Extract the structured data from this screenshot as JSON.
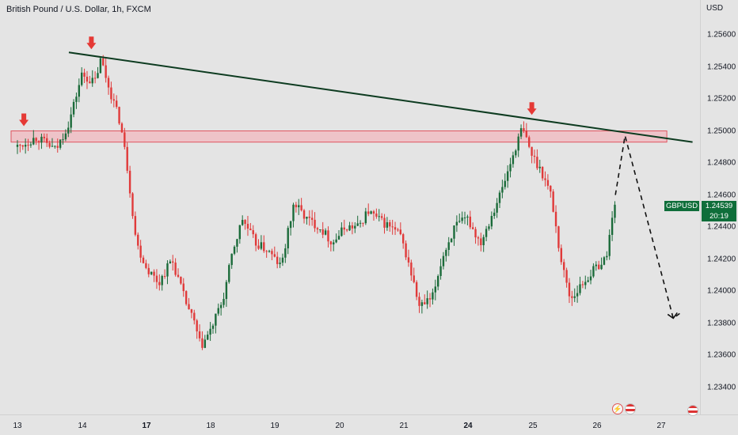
{
  "header": {
    "title": "British Pound / U.S. Dollar, 1h, FXCM"
  },
  "price_axis": {
    "currency": "USD"
  },
  "last_price_tag": {
    "symbol": "GBPUSD",
    "price": "1.24539",
    "countdown": "20:19"
  },
  "colors": {
    "up": "#1b6b3a",
    "down": "#e03a3a",
    "zone_fill": "#f2b8bf",
    "zone_border": "#e05560",
    "trendline": "#0d3b20",
    "arrow": "#e53935",
    "tag": "#0f6e3a"
  },
  "chart_data": {
    "type": "candlestick",
    "symbol": "GBPUSD",
    "timeframe": "1h",
    "ylim": [
      1.233,
      1.2574
    ],
    "y_ticks": [
      "1.25600",
      "1.25400",
      "1.25200",
      "1.25000",
      "1.24800",
      "1.24600",
      "1.24400",
      "1.24200",
      "1.24000",
      "1.23800",
      "1.23600",
      "1.23400"
    ],
    "x_ticks": [
      {
        "label": "13",
        "bold": false
      },
      {
        "label": "14",
        "bold": false
      },
      {
        "label": "17",
        "bold": true
      },
      {
        "label": "18",
        "bold": false
      },
      {
        "label": "19",
        "bold": false
      },
      {
        "label": "20",
        "bold": false
      },
      {
        "label": "21",
        "bold": false
      },
      {
        "label": "24",
        "bold": true
      },
      {
        "label": "25",
        "bold": false
      },
      {
        "label": "26",
        "bold": false
      },
      {
        "label": "27",
        "bold": false
      }
    ],
    "key_levels": [
      {
        "day": 0.0,
        "price": 1.249
      },
      {
        "day": 0.3,
        "price": 1.2496
      },
      {
        "day": 0.6,
        "price": 1.2488
      },
      {
        "day": 0.8,
        "price": 1.2505
      },
      {
        "day": 1.0,
        "price": 1.2535
      },
      {
        "day": 1.2,
        "price": 1.253
      },
      {
        "day": 1.3,
        "price": 1.2545
      },
      {
        "day": 1.4,
        "price": 1.253
      },
      {
        "day": 1.6,
        "price": 1.2505
      },
      {
        "day": 1.7,
        "price": 1.248
      },
      {
        "day": 1.85,
        "price": 1.243
      },
      {
        "day": 2.0,
        "price": 1.2415
      },
      {
        "day": 2.2,
        "price": 1.2405
      },
      {
        "day": 2.4,
        "price": 1.242
      },
      {
        "day": 2.6,
        "price": 1.2395
      },
      {
        "day": 2.75,
        "price": 1.238
      },
      {
        "day": 2.85,
        "price": 1.2365
      },
      {
        "day": 3.0,
        "price": 1.2375
      },
      {
        "day": 3.2,
        "price": 1.2395
      },
      {
        "day": 3.35,
        "price": 1.2425
      },
      {
        "day": 3.5,
        "price": 1.2445
      },
      {
        "day": 3.7,
        "price": 1.243
      },
      {
        "day": 3.9,
        "price": 1.2425
      },
      {
        "day": 4.1,
        "price": 1.2415
      },
      {
        "day": 4.3,
        "price": 1.2455
      },
      {
        "day": 4.5,
        "price": 1.2445
      },
      {
        "day": 4.7,
        "price": 1.244
      },
      {
        "day": 4.9,
        "price": 1.243
      },
      {
        "day": 5.1,
        "price": 1.244
      },
      {
        "day": 5.3,
        "price": 1.244
      },
      {
        "day": 5.45,
        "price": 1.245
      },
      {
        "day": 5.6,
        "price": 1.2445
      },
      {
        "day": 5.8,
        "price": 1.244
      },
      {
        "day": 5.95,
        "price": 1.2435
      },
      {
        "day": 6.1,
        "price": 1.2415
      },
      {
        "day": 6.25,
        "price": 1.239
      },
      {
        "day": 6.45,
        "price": 1.2395
      },
      {
        "day": 6.6,
        "price": 1.242
      },
      {
        "day": 6.8,
        "price": 1.244
      },
      {
        "day": 7.0,
        "price": 1.2445
      },
      {
        "day": 7.2,
        "price": 1.243
      },
      {
        "day": 7.4,
        "price": 1.245
      },
      {
        "day": 7.55,
        "price": 1.2465
      },
      {
        "day": 7.75,
        "price": 1.249
      },
      {
        "day": 7.85,
        "price": 1.2502
      },
      {
        "day": 8.0,
        "price": 1.2485
      },
      {
        "day": 8.15,
        "price": 1.2475
      },
      {
        "day": 8.3,
        "price": 1.246
      },
      {
        "day": 8.45,
        "price": 1.242
      },
      {
        "day": 8.6,
        "price": 1.2395
      },
      {
        "day": 8.8,
        "price": 1.2405
      },
      {
        "day": 9.0,
        "price": 1.2415
      },
      {
        "day": 9.15,
        "price": 1.242
      },
      {
        "day": 9.25,
        "price": 1.2445
      },
      {
        "day": 9.3,
        "price": 1.24539
      }
    ],
    "resistance_zone": {
      "from_day": 0.0,
      "to_day": 10.1,
      "top": 1.25,
      "bottom": 1.2493
    },
    "trendline": {
      "start": {
        "day": 0.8,
        "price": 1.2549
      },
      "end": {
        "day": 10.5,
        "price": 1.2493
      }
    },
    "projection": [
      {
        "day": 9.3,
        "price": 1.246
      },
      {
        "day": 9.45,
        "price": 1.2497
      },
      {
        "day": 10.2,
        "price": 1.2383
      },
      {
        "day": 10.3,
        "price": 1.2386
      }
    ],
    "arrows": [
      {
        "day": 0.1,
        "price": 1.2502
      },
      {
        "day": 1.15,
        "price": 1.255
      },
      {
        "day": 8.0,
        "price": 1.2509
      }
    ]
  }
}
